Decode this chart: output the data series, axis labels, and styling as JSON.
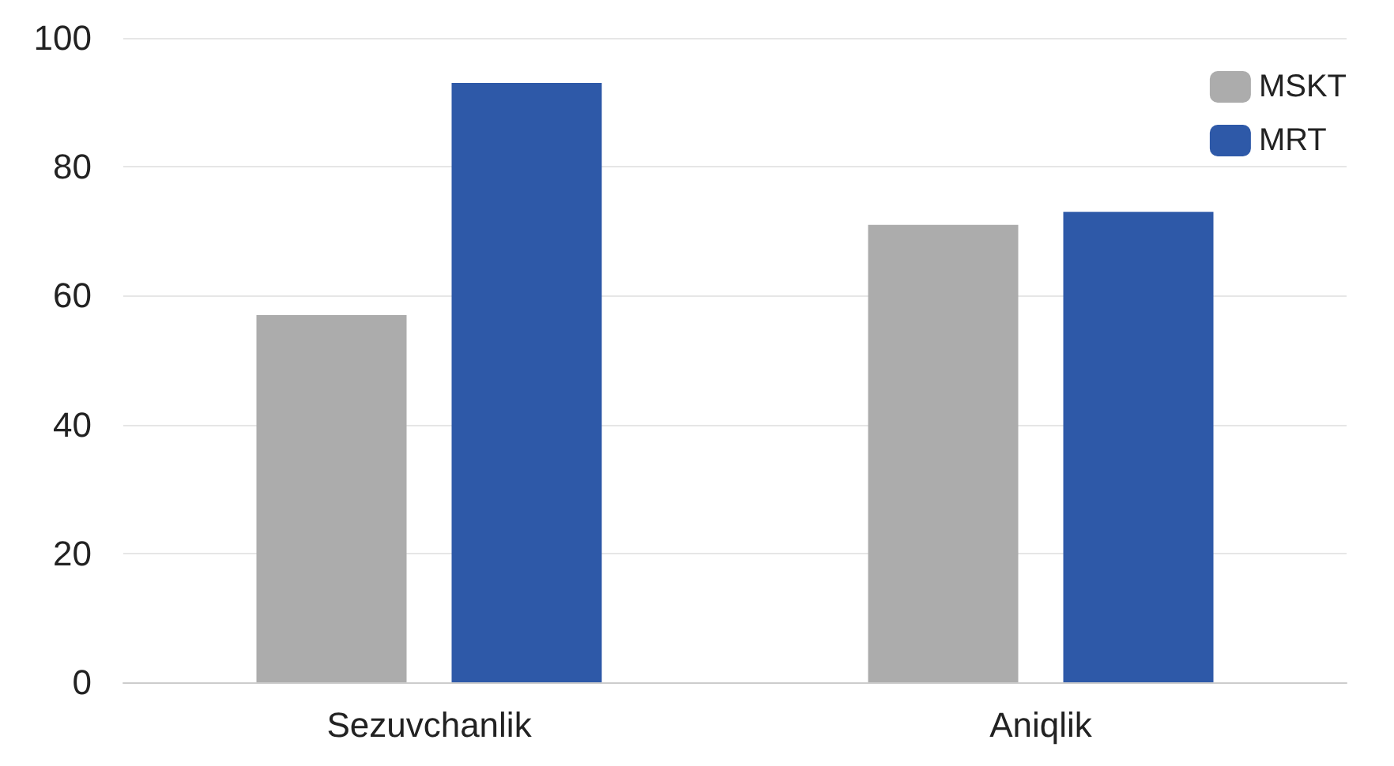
{
  "chart_data": {
    "type": "bar",
    "categories": [
      "Sezuvchanlik",
      "Aniqlik"
    ],
    "series": [
      {
        "name": "MSKT",
        "color": "#acacac",
        "values": [
          57,
          71
        ]
      },
      {
        "name": "MRT",
        "color": "#2e59a8",
        "values": [
          93,
          73
        ]
      }
    ],
    "ylim": [
      0,
      100
    ],
    "yticks": [
      0,
      20,
      40,
      60,
      80,
      100
    ],
    "grid": "y",
    "legend": "top right"
  }
}
